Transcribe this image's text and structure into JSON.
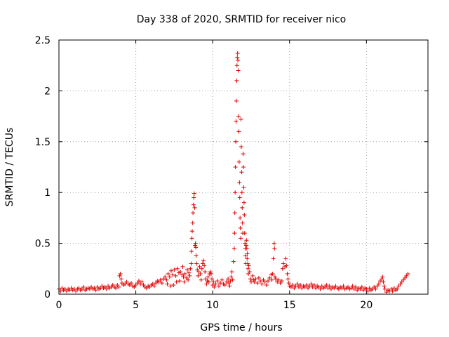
{
  "chart_data": {
    "type": "scatter",
    "title": "Day 338 of 2020, SRMTID for receiver nico",
    "xlabel": "GPS time / hours",
    "ylabel": "SRMTID / TECUs",
    "xlim": [
      0,
      24
    ],
    "ylim": [
      0,
      2.5
    ],
    "x_ticks": [
      0,
      5,
      10,
      15,
      20
    ],
    "x_tick_labels": [
      "0",
      "5",
      "10",
      "15",
      "20"
    ],
    "y_ticks": [
      0,
      0.5,
      1,
      1.5,
      2,
      2.5
    ],
    "y_tick_labels": [
      "0",
      "0.5",
      "1",
      "1.5",
      "2",
      "2.5"
    ],
    "grid": true,
    "marker": "plus",
    "color": "#e00000",
    "series": [
      {
        "name": "SRMTID",
        "points": [
          [
            0.0,
            0.05
          ],
          [
            0.1,
            0.03
          ],
          [
            0.2,
            0.06
          ],
          [
            0.3,
            0.04
          ],
          [
            0.4,
            0.05
          ],
          [
            0.5,
            0.03
          ],
          [
            0.6,
            0.05
          ],
          [
            0.7,
            0.04
          ],
          [
            0.8,
            0.06
          ],
          [
            0.9,
            0.04
          ],
          [
            1.0,
            0.05
          ],
          [
            1.1,
            0.03
          ],
          [
            1.2,
            0.05
          ],
          [
            1.3,
            0.06
          ],
          [
            1.4,
            0.04
          ],
          [
            1.5,
            0.05
          ],
          [
            1.6,
            0.07
          ],
          [
            1.7,
            0.04
          ],
          [
            1.8,
            0.05
          ],
          [
            1.9,
            0.06
          ],
          [
            2.0,
            0.05
          ],
          [
            2.1,
            0.07
          ],
          [
            2.2,
            0.05
          ],
          [
            2.3,
            0.06
          ],
          [
            2.4,
            0.04
          ],
          [
            2.5,
            0.07
          ],
          [
            2.6,
            0.05
          ],
          [
            2.7,
            0.06
          ],
          [
            2.8,
            0.08
          ],
          [
            2.9,
            0.06
          ],
          [
            3.0,
            0.07
          ],
          [
            3.1,
            0.05
          ],
          [
            3.2,
            0.08
          ],
          [
            3.3,
            0.06
          ],
          [
            3.4,
            0.07
          ],
          [
            3.5,
            0.09
          ],
          [
            3.6,
            0.07
          ],
          [
            3.7,
            0.06
          ],
          [
            3.8,
            0.09
          ],
          [
            3.9,
            0.07
          ],
          [
            3.95,
            0.18
          ],
          [
            4.0,
            0.2
          ],
          [
            4.05,
            0.15
          ],
          [
            4.1,
            0.11
          ],
          [
            4.2,
            0.09
          ],
          [
            4.3,
            0.1
          ],
          [
            4.4,
            0.12
          ],
          [
            4.5,
            0.1
          ],
          [
            4.6,
            0.09
          ],
          [
            4.7,
            0.11
          ],
          [
            4.8,
            0.08
          ],
          [
            4.9,
            0.07
          ],
          [
            5.0,
            0.09
          ],
          [
            5.1,
            0.11
          ],
          [
            5.2,
            0.13
          ],
          [
            5.3,
            0.1
          ],
          [
            5.4,
            0.12
          ],
          [
            5.5,
            0.09
          ],
          [
            5.6,
            0.07
          ],
          [
            5.7,
            0.06
          ],
          [
            5.8,
            0.08
          ],
          [
            5.9,
            0.07
          ],
          [
            6.0,
            0.09
          ],
          [
            6.1,
            0.1
          ],
          [
            6.2,
            0.08
          ],
          [
            6.3,
            0.11
          ],
          [
            6.4,
            0.13
          ],
          [
            6.5,
            0.12
          ],
          [
            6.6,
            0.14
          ],
          [
            6.7,
            0.11
          ],
          [
            6.8,
            0.15
          ],
          [
            6.9,
            0.17
          ],
          [
            7.0,
            0.14
          ],
          [
            7.05,
            0.1
          ],
          [
            7.1,
            0.2
          ],
          [
            7.2,
            0.17
          ],
          [
            7.25,
            0.08
          ],
          [
            7.3,
            0.23
          ],
          [
            7.4,
            0.19
          ],
          [
            7.45,
            0.09
          ],
          [
            7.5,
            0.24
          ],
          [
            7.6,
            0.18
          ],
          [
            7.65,
            0.12
          ],
          [
            7.7,
            0.25
          ],
          [
            7.8,
            0.21
          ],
          [
            7.85,
            0.13
          ],
          [
            7.9,
            0.22
          ],
          [
            8.0,
            0.19
          ],
          [
            8.05,
            0.27
          ],
          [
            8.1,
            0.17
          ],
          [
            8.15,
            0.12
          ],
          [
            8.2,
            0.2
          ],
          [
            8.3,
            0.16
          ],
          [
            8.35,
            0.24
          ],
          [
            8.4,
            0.14
          ],
          [
            8.45,
            0.21
          ],
          [
            8.5,
            0.18
          ],
          [
            8.55,
            0.25
          ],
          [
            8.6,
            0.3
          ],
          [
            8.62,
            0.42
          ],
          [
            8.65,
            0.55
          ],
          [
            8.67,
            0.62
          ],
          [
            8.7,
            0.7
          ],
          [
            8.72,
            0.8
          ],
          [
            8.75,
            0.88
          ],
          [
            8.77,
            0.95
          ],
          [
            8.8,
            0.99
          ],
          [
            8.83,
            0.85
          ],
          [
            8.85,
            0.48
          ],
          [
            8.88,
            0.5
          ],
          [
            8.9,
            0.46
          ],
          [
            8.92,
            0.38
          ],
          [
            8.95,
            0.3
          ],
          [
            9.0,
            0.24
          ],
          [
            9.05,
            0.18
          ],
          [
            9.1,
            0.22
          ],
          [
            9.15,
            0.27
          ],
          [
            9.2,
            0.2
          ],
          [
            9.25,
            0.14
          ],
          [
            9.3,
            0.25
          ],
          [
            9.35,
            0.3
          ],
          [
            9.4,
            0.33
          ],
          [
            9.45,
            0.28
          ],
          [
            9.5,
            0.22
          ],
          [
            9.55,
            0.15
          ],
          [
            9.6,
            0.1
          ],
          [
            9.65,
            0.13
          ],
          [
            9.7,
            0.17
          ],
          [
            9.75,
            0.12
          ],
          [
            9.8,
            0.2
          ],
          [
            9.85,
            0.22
          ],
          [
            9.9,
            0.2
          ],
          [
            9.95,
            0.15
          ],
          [
            10.0,
            0.09
          ],
          [
            10.05,
            0.12
          ],
          [
            10.1,
            0.07
          ],
          [
            10.2,
            0.1
          ],
          [
            10.3,
            0.13
          ],
          [
            10.4,
            0.08
          ],
          [
            10.5,
            0.11
          ],
          [
            10.6,
            0.14
          ],
          [
            10.7,
            0.1
          ],
          [
            10.8,
            0.09
          ],
          [
            10.9,
            0.12
          ],
          [
            11.0,
            0.15
          ],
          [
            11.05,
            0.11
          ],
          [
            11.1,
            0.08
          ],
          [
            11.15,
            0.13
          ],
          [
            11.2,
            0.17
          ],
          [
            11.25,
            0.22
          ],
          [
            11.3,
            0.14
          ],
          [
            11.35,
            0.32
          ],
          [
            11.4,
            0.45
          ],
          [
            11.42,
            0.6
          ],
          [
            11.44,
            0.8
          ],
          [
            11.46,
            1.0
          ],
          [
            11.48,
            1.25
          ],
          [
            11.5,
            1.5
          ],
          [
            11.52,
            1.7
          ],
          [
            11.54,
            1.9
          ],
          [
            11.56,
            2.1
          ],
          [
            11.58,
            2.25
          ],
          [
            11.6,
            2.33
          ],
          [
            11.62,
            2.37
          ],
          [
            11.64,
            2.3
          ],
          [
            11.66,
            2.2
          ],
          [
            11.68,
            1.75
          ],
          [
            11.7,
            1.6
          ],
          [
            11.72,
            1.3
          ],
          [
            11.74,
            1.1
          ],
          [
            11.76,
            0.95
          ],
          [
            11.78,
            0.75
          ],
          [
            11.8,
            0.65
          ],
          [
            11.82,
            0.55
          ],
          [
            11.84,
            1.72
          ],
          [
            11.86,
            1.45
          ],
          [
            11.88,
            1.2
          ],
          [
            11.9,
            1.0
          ],
          [
            11.92,
            0.85
          ],
          [
            11.94,
            0.7
          ],
          [
            11.96,
            0.6
          ],
          [
            11.98,
            1.38
          ],
          [
            12.0,
            1.25
          ],
          [
            12.02,
            1.05
          ],
          [
            12.04,
            0.9
          ],
          [
            12.06,
            0.78
          ],
          [
            12.08,
            0.6
          ],
          [
            12.1,
            0.5
          ],
          [
            12.12,
            0.45
          ],
          [
            12.14,
            0.38
          ],
          [
            12.16,
            0.3
          ],
          [
            12.18,
            0.48
          ],
          [
            12.2,
            0.53
          ],
          [
            12.22,
            0.45
          ],
          [
            12.24,
            0.35
          ],
          [
            12.26,
            0.4
          ],
          [
            12.28,
            0.3
          ],
          [
            12.3,
            0.25
          ],
          [
            12.32,
            0.2
          ],
          [
            12.35,
            0.28
          ],
          [
            12.4,
            0.22
          ],
          [
            12.45,
            0.15
          ],
          [
            12.5,
            0.12
          ],
          [
            12.6,
            0.18
          ],
          [
            12.65,
            0.14
          ],
          [
            12.7,
            0.12
          ],
          [
            12.8,
            0.15
          ],
          [
            12.9,
            0.11
          ],
          [
            13.0,
            0.16
          ],
          [
            13.1,
            0.13
          ],
          [
            13.2,
            0.1
          ],
          [
            13.3,
            0.14
          ],
          [
            13.4,
            0.12
          ],
          [
            13.5,
            0.09
          ],
          [
            13.6,
            0.13
          ],
          [
            13.7,
            0.16
          ],
          [
            13.8,
            0.19
          ],
          [
            13.85,
            0.14
          ],
          [
            13.9,
            0.2
          ],
          [
            13.95,
            0.35
          ],
          [
            14.0,
            0.5
          ],
          [
            14.02,
            0.45
          ],
          [
            14.05,
            0.17
          ],
          [
            14.1,
            0.15
          ],
          [
            14.2,
            0.12
          ],
          [
            14.3,
            0.14
          ],
          [
            14.4,
            0.11
          ],
          [
            14.5,
            0.13
          ],
          [
            14.55,
            0.25
          ],
          [
            14.6,
            0.3
          ],
          [
            14.7,
            0.27
          ],
          [
            14.75,
            0.35
          ],
          [
            14.8,
            0.28
          ],
          [
            14.85,
            0.2
          ],
          [
            14.9,
            0.15
          ],
          [
            14.95,
            0.11
          ],
          [
            15.0,
            0.08
          ],
          [
            15.1,
            0.07
          ],
          [
            15.2,
            0.09
          ],
          [
            15.3,
            0.06
          ],
          [
            15.4,
            0.08
          ],
          [
            15.5,
            0.1
          ],
          [
            15.6,
            0.07
          ],
          [
            15.7,
            0.09
          ],
          [
            15.8,
            0.06
          ],
          [
            15.9,
            0.08
          ],
          [
            16.0,
            0.07
          ],
          [
            16.1,
            0.09
          ],
          [
            16.2,
            0.06
          ],
          [
            16.3,
            0.08
          ],
          [
            16.4,
            0.1
          ],
          [
            16.5,
            0.07
          ],
          [
            16.6,
            0.09
          ],
          [
            16.7,
            0.06
          ],
          [
            16.8,
            0.08
          ],
          [
            16.9,
            0.07
          ],
          [
            17.0,
            0.05
          ],
          [
            17.1,
            0.08
          ],
          [
            17.2,
            0.06
          ],
          [
            17.3,
            0.07
          ],
          [
            17.4,
            0.09
          ],
          [
            17.5,
            0.06
          ],
          [
            17.6,
            0.08
          ],
          [
            17.7,
            0.05
          ],
          [
            17.8,
            0.07
          ],
          [
            17.9,
            0.06
          ],
          [
            18.0,
            0.08
          ],
          [
            18.1,
            0.06
          ],
          [
            18.2,
            0.05
          ],
          [
            18.3,
            0.07
          ],
          [
            18.4,
            0.06
          ],
          [
            18.5,
            0.08
          ],
          [
            18.6,
            0.05
          ],
          [
            18.7,
            0.06
          ],
          [
            18.8,
            0.07
          ],
          [
            18.9,
            0.05
          ],
          [
            19.0,
            0.06
          ],
          [
            19.1,
            0.08
          ],
          [
            19.2,
            0.05
          ],
          [
            19.3,
            0.07
          ],
          [
            19.4,
            0.04
          ],
          [
            19.5,
            0.06
          ],
          [
            19.6,
            0.05
          ],
          [
            19.7,
            0.07
          ],
          [
            19.8,
            0.04
          ],
          [
            19.9,
            0.06
          ],
          [
            20.0,
            0.05
          ],
          [
            20.1,
            0.03
          ],
          [
            20.2,
            0.06
          ],
          [
            20.3,
            0.04
          ],
          [
            20.4,
            0.05
          ],
          [
            20.5,
            0.07
          ],
          [
            20.6,
            0.05
          ],
          [
            20.7,
            0.08
          ],
          [
            20.8,
            0.1
          ],
          [
            20.9,
            0.13
          ],
          [
            21.0,
            0.15
          ],
          [
            21.05,
            0.17
          ],
          [
            21.1,
            0.12
          ],
          [
            21.15,
            0.08
          ],
          [
            21.2,
            0.05
          ],
          [
            21.3,
            0.02
          ],
          [
            21.4,
            0.04
          ],
          [
            21.5,
            0.03
          ],
          [
            21.6,
            0.05
          ],
          [
            21.7,
            0.03
          ],
          [
            21.8,
            0.06
          ],
          [
            21.9,
            0.04
          ],
          [
            22.0,
            0.05
          ],
          [
            22.1,
            0.08
          ],
          [
            22.2,
            0.1
          ],
          [
            22.3,
            0.12
          ],
          [
            22.4,
            0.14
          ],
          [
            22.5,
            0.16
          ],
          [
            22.6,
            0.18
          ],
          [
            22.7,
            0.2
          ]
        ]
      }
    ]
  }
}
